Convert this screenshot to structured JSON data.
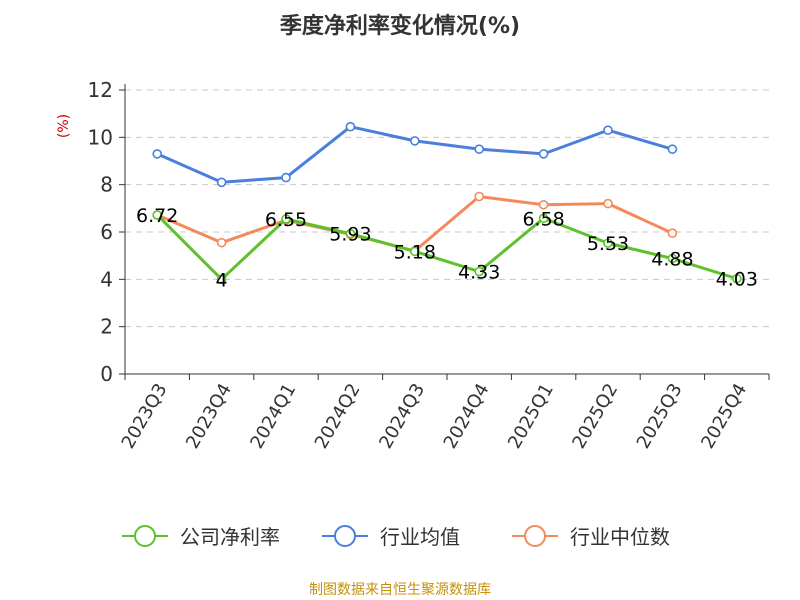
{
  "chart_data": {
    "type": "line",
    "title": "季度净利率变化情况(%)",
    "ylabel": "(%)",
    "xlabel": "",
    "ylim": [
      0,
      12
    ],
    "yticks": [
      0,
      2,
      4,
      6,
      8,
      10,
      12
    ],
    "grid": true,
    "legend_position": "bottom",
    "categories": [
      "2023Q3",
      "2023Q4",
      "2024Q1",
      "2024Q2",
      "2024Q3",
      "2024Q4",
      "2025Q1",
      "2025Q2",
      "2025Q3",
      "2025Q4"
    ],
    "series": [
      {
        "name": "公司净利率",
        "color": "#5cc22a",
        "values": [
          6.72,
          4,
          6.55,
          5.93,
          5.18,
          4.33,
          6.58,
          5.53,
          4.88,
          4.03
        ],
        "labels": [
          "6.72",
          "4",
          "6.55",
          "5.93",
          "5.18",
          "4.33",
          "6.58",
          "5.53",
          "4.88",
          "4.03"
        ]
      },
      {
        "name": "行业均值",
        "color": "#4a7fdb",
        "values": [
          9.3,
          8.1,
          8.3,
          10.45,
          9.85,
          9.5,
          9.3,
          10.3,
          9.5,
          null
        ]
      },
      {
        "name": "行业中位数",
        "color": "#f48a5b",
        "values": [
          6.72,
          5.55,
          6.5,
          5.9,
          5.2,
          7.5,
          7.15,
          7.2,
          5.95,
          null
        ]
      }
    ],
    "source": "制图数据来自恒生聚源数据库"
  }
}
